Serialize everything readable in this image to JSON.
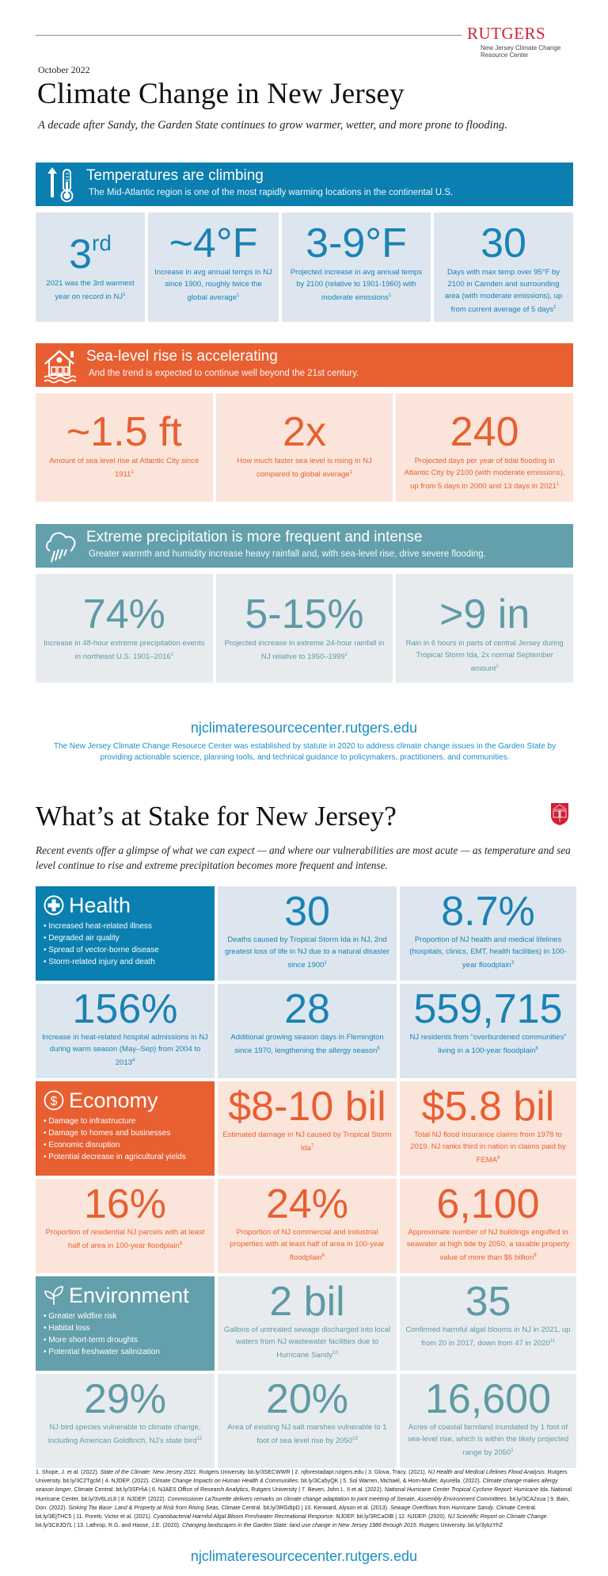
{
  "header": {
    "logo_word": "RUTGERS",
    "logo_sub_line1": "New Jersey Climate Change",
    "logo_sub_line2": "Resource Center",
    "date": "October 2022",
    "title": "Climate Change in New Jersey",
    "subtitle": "A decade after Sandy, the Garden State continues to grow warmer, wetter, and more prone to flooding."
  },
  "colors": {
    "temperature": "#0a7fb0",
    "sea_level": "#e85f32",
    "precipitation": "#64a0ac",
    "rutgers_red": "#d21f36",
    "link": "#1a8fc6"
  },
  "sections": {
    "temperature": {
      "icon": "thermometer-arrow-up-icon",
      "title": "Temperatures are climbing",
      "subtitle": "The Mid-Atlantic region is one of the most rapidly warming locations in the continental U.S.",
      "stats": [
        {
          "value": "3",
          "value_sup": "rd",
          "desc": "2021 was the 3rd warmest year on record in NJ",
          "ref": "1"
        },
        {
          "value": "~4°F",
          "value_sup": "",
          "desc": "Increase in avg annual temps in NJ since 1900, roughly twice the global average",
          "ref": "1"
        },
        {
          "value": "3-9°F",
          "value_sup": "",
          "desc": "Projected increase in avg annual temps by 2100 (relative to 1901-1960) with moderate emissions",
          "ref": "1"
        },
        {
          "value": "30",
          "value_sup": "",
          "desc": "Days with max temp over 95°F by 2100 in Camden and surrounding area (with moderate emissions), up from current average of 5 days",
          "ref": "2"
        }
      ]
    },
    "sea_level": {
      "icon": "flooded-house-icon",
      "title": "Sea-level rise is accelerating",
      "subtitle": "And the trend is expected to continue well beyond the 21st century.",
      "stats": [
        {
          "value": "~1.5 ft",
          "desc": "Amount of sea level rise at Atlantic City since 1911",
          "ref": "1"
        },
        {
          "value": "2x",
          "desc": "How much faster sea level is rising in NJ compared to global average",
          "ref": "1"
        },
        {
          "value": "240",
          "desc": "Projected days per year of tidal flooding in Atlantic City by 2100 (with moderate emissions), up from 5 days in 2000 and 13 days in 2021",
          "ref": "1"
        }
      ]
    },
    "precipitation": {
      "icon": "rain-cloud-icon",
      "title": "Extreme precipitation is more frequent and intense",
      "subtitle": "Greater warmth and humidity increase heavy rainfall and, with sea-level rise,  drive severe flooding.",
      "stats": [
        {
          "value": "74%",
          "desc": "Increase in 48-hour extreme precipitation events in northeast U.S. 1901–2016",
          "ref": "1"
        },
        {
          "value": "5-15%",
          "desc": "Projected increase in extreme 24-hour rainfall in NJ relative to 1950–1999",
          "ref": "1"
        },
        {
          "value": ">9 in",
          "desc": "Rain in 6 hours in parts of central Jersey during Tropical Storm Ida, 2x normal September amount",
          "ref": "1"
        }
      ]
    }
  },
  "website": {
    "url": "njclimateresourcecenter.rutgers.edu",
    "description": "The New Jersey Climate Change Resource Center was established by statute in 2020 to address climate change issues in the Garden State by providing actionable science, planning tools, and technical guidance to policymakers, practitioners, and communities."
  },
  "stake": {
    "title": "What’s at Stake for New Jersey?",
    "subtitle": "Recent events offer a glimpse of what we can expect — and where our vulnerabilities are most acute — as temperature and sea level continue to rise and extreme precipitation becomes more frequent and intense.",
    "health": {
      "icon": "medical-cross-icon",
      "label": "Health",
      "bullets": [
        "Increased heat-related illness",
        "Degraded air quality",
        "Spread of vector-borne disease",
        "Storm-related injury and death"
      ],
      "stats": [
        {
          "value": "30",
          "desc": "Deaths caused by Tropical Storm Ida in NJ, 2nd greatest loss of life in NJ due to a natural disaster since 1900",
          "ref": "1"
        },
        {
          "value": "8.7%",
          "desc": "Proportion of NJ health and medical lifelines (hospitals, clinics, EMT, health facilities) in 100-year floodplain",
          "ref": "3"
        },
        {
          "value": "156%",
          "desc": "Increase in heat-related hospital admissions in NJ during warm season (May–Sep) from 2004 to 2013",
          "ref": "4"
        },
        {
          "value": "28",
          "desc": "Additional growing season days in Flemington since 1970, lengthening the allergy season",
          "ref": "5"
        },
        {
          "value": "559,715",
          "desc": "NJ residents from “overburdened communities” living in a 100-year floodplain",
          "ref": "6"
        }
      ]
    },
    "economy": {
      "icon": "dollar-circle-icon",
      "label": "Economy",
      "bullets": [
        "Damage to infrastructure",
        "Damage to homes and businesses",
        "Economic disruption",
        "Potential decrease in agricultural yields"
      ],
      "stats": [
        {
          "value": "$8-10 bil",
          "desc": "Estimated damage in NJ caused by Tropical Storm Ida",
          "ref": "7"
        },
        {
          "value": "$5.8 bil",
          "desc": "Total NJ flood insurance claims from 1978 to 2019. NJ ranks third  in nation in claims paid by FEMA",
          "ref": "8"
        },
        {
          "value": "16%",
          "desc": "Proportion of residential NJ parcels with at least half of area in 100-year floodplain",
          "ref": "6"
        },
        {
          "value": "24%",
          "desc": "Proportion of NJ commercial and industrial  properties with at least half of area in 100-year floodplain",
          "ref": "6"
        },
        {
          "value": "6,100",
          "desc": "Approximate number of NJ buildings engulfed in seawater at high tide by 2050, a taxable property value of more than $6 billion",
          "ref": "9"
        }
      ]
    },
    "environment": {
      "icon": "leaf-sprout-icon",
      "label": "Environment",
      "bullets": [
        "Greater wildfire risk",
        "Habitat loss",
        "More short-term droughts",
        "Potential freshwater salinization"
      ],
      "stats": [
        {
          "value": "2 bil",
          "desc": "Gallons of untreated sewage discharged into local waters from NJ wastewater facilities due to Hurricane Sandy",
          "ref": "10"
        },
        {
          "value": "35",
          "desc": "Confirmed harmful algal blooms in NJ in 2021, up from 20 in 2017, down from 47 in 2020",
          "ref": "11"
        },
        {
          "value": "29%",
          "desc": "NJ bird species vulnerable to climate change, including American Goldfinch, NJ’s state bird",
          "ref": "12"
        },
        {
          "value": "20%",
          "desc": "Area of existing NJ salt marshes vulnerable to 1 foot of sea level rise by 2050",
          "ref": "13"
        },
        {
          "value": "16,600",
          "desc": "Acres of coastal farmland inundated by 1 foot of sea-level rise, which is within the likely projected range by 2050",
          "ref": "1"
        }
      ]
    }
  },
  "references": [
    {
      "pre": "1. Shope, J. et al. (2022). ",
      "it": "State of the Climate: New Jersey 2021",
      "post": ". Rutgers University. bit.ly/3SECWWR"
    },
    {
      "pre": "2. njforestadapt.rutgers.edu",
      "it": "",
      "post": ""
    },
    {
      "pre": "3. Glova, Tracy. (2021). ",
      "it": "NJ Health and Medical Lifelines Flood Analysis",
      "post": ". Rutgers University. bit.ly/3C2TgcM"
    },
    {
      "pre": "4. NJDEP. (2022). ",
      "it": "Climate Change Impacts on Human Health & Communities",
      "post": ". bit.ly/3Ca5yQK"
    },
    {
      "pre": "5. Sol Warren, Michael, & Horn-Muller, Ayurella. (2022). ",
      "it": "Climate change makes allergy season longer",
      "post": ". Climate Central. bit.ly/3SFrfiA"
    },
    {
      "pre": "6. NJAES Office of Research Analytics, Rutgers University",
      "it": "",
      "post": ""
    },
    {
      "pre": "7. Beven, John L. II et al. (2022). ",
      "it": "National Hurricane Center Tropical Cyclone Report: Hurricane Ida",
      "post": ". National Hurricane Center. bit.ly/3V6LzL8"
    },
    {
      "pre": "8. NJDEP. (2022). ",
      "it": "Commissioner LaTourette delivers remarks on climate change adaptation to joint meeting of Senate, Assembly Environment Committees",
      "post": ". bit.ly/3CA2xua"
    },
    {
      "pre": "9. Bain, Don. (2022). ",
      "it": "Sinking Tax Base: Land & Property at Risk from Rising Seas",
      "post": ". Climate Central. bit.ly/3RGdIpD"
    },
    {
      "pre": "10. Kenward, Alyson et al. (2013). ",
      "it": "Sewage Overflows from Hurricane Sandy",
      "post": ". Climate Central. bit.ly/3EjTHC5"
    },
    {
      "pre": "11. Poretti, Victor et al. (2021). ",
      "it": "Cyanobacterial Harmful Algal Bloom Freshwater Recreational Response",
      "post": ". NJDEP. bit.ly/3RCaOlB"
    },
    {
      "pre": "12. NJDEP. (2020). ",
      "it": "NJ Scientific Report on Climate Change",
      "post": ". bit.ly/3C8JO7L"
    },
    {
      "pre": "13. Lathrop, R.G. and Hasse, J.E. (2020). ",
      "it": "Changing landscapes in the Garden State: land use change in New Jersey 1986 through 2015",
      "post": ". Rutgers University. bit.ly/3ykzYhZ"
    }
  ],
  "references_separator": " | ",
  "footer": {
    "url": "njclimateresourcecenter.rutgers.edu"
  }
}
